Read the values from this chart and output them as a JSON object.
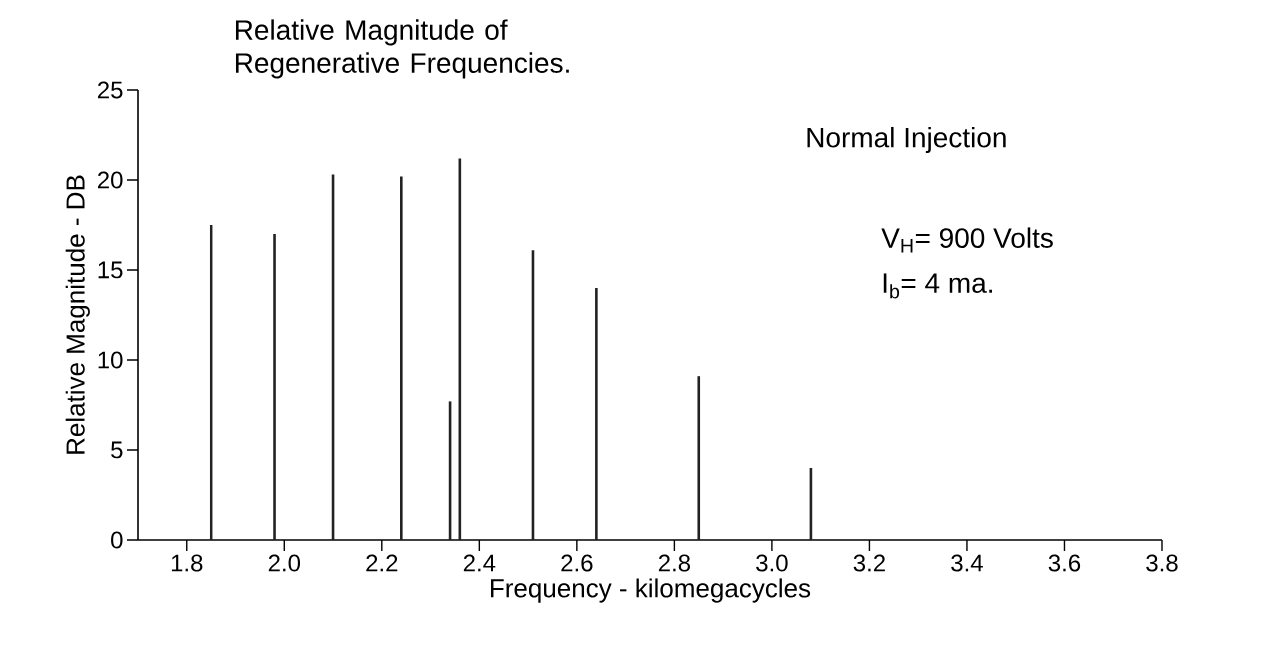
{
  "chart_data": {
    "type": "bar",
    "title": "Relative Magnitude of Regenerative Frequencies.",
    "xlabel": "Frequency - kilomegacycles",
    "ylabel": "Relative Magnitude - DB",
    "annotations": [
      "Normal Injection",
      "V$_{H}$= 900 Volts",
      "I$_{b}$= 4 ma."
    ],
    "x": [
      1.85,
      1.98,
      2.1,
      2.24,
      2.34,
      2.36,
      2.51,
      2.64,
      2.85,
      3.08
    ],
    "values": [
      17.5,
      17,
      20.3,
      20.2,
      7.7,
      21.2,
      16.1,
      14,
      9.1,
      4
    ],
    "color": "#222222",
    "xlim": [
      1.7,
      3.8
    ],
    "xticks": [
      1.8,
      {
        "value": 2,
        "label": "2.0"
      },
      2.2,
      2.4,
      2.6,
      2.8,
      {
        "value": 3,
        "label": "3.0"
      },
      3.2,
      3.4,
      3.6,
      3.8
    ],
    "ylim": [
      0,
      25
    ],
    "yticks": [
      0,
      5,
      10,
      15,
      20,
      25
    ]
  }
}
